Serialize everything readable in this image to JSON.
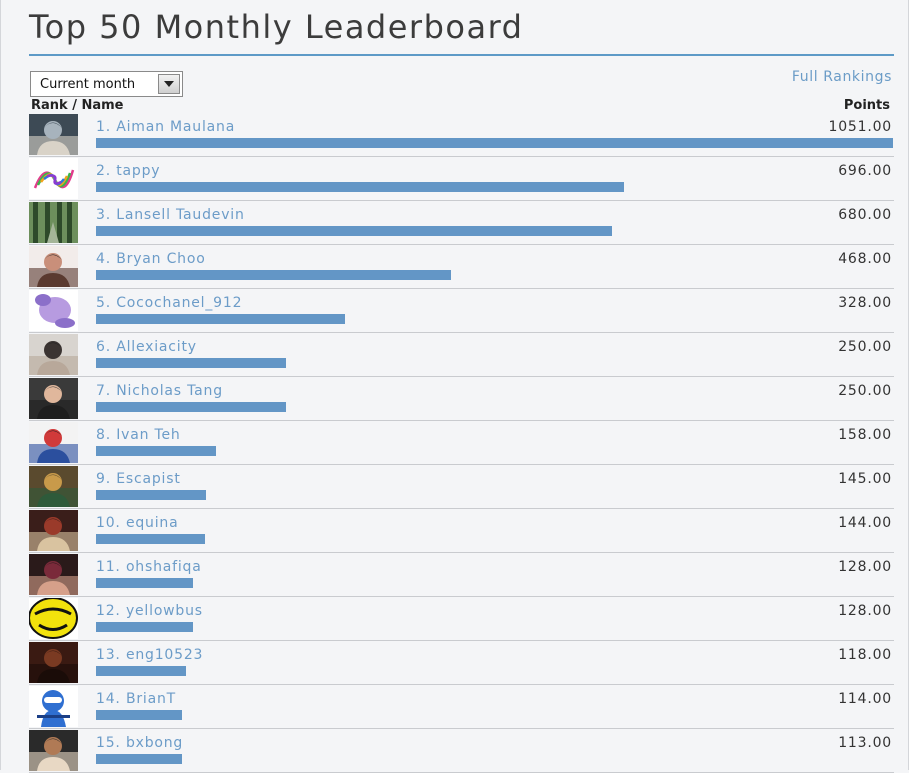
{
  "page": {
    "title": "Top 50 Monthly Leaderboard",
    "period_select": {
      "value": "Current month"
    },
    "full_rankings_link": "Full Rankings",
    "columns": {
      "rank_name": "Rank / Name",
      "points": "Points"
    },
    "bar_color": "#6396c6",
    "link_color": "#6c9cc8",
    "max_points": 1051.0
  },
  "rows": [
    {
      "rank": "1.",
      "name": "Aiman Maulana",
      "points": "1051.00",
      "value": 1051.0,
      "avatar": "photo-icon",
      "avatar_colors": [
        "#3d4a55",
        "#a7b3bd",
        "#d9d3c8"
      ]
    },
    {
      "rank": "2.",
      "name": "tappy",
      "points": "696.00",
      "value": 696.0,
      "avatar": "colorful-doodle-icon",
      "avatar_colors": [
        "#ffffff",
        "#e23c8c",
        "#3bb54a"
      ]
    },
    {
      "rank": "3.",
      "name": "Lansell Taudevin",
      "points": "680.00",
      "value": 680.0,
      "avatar": "forest-photo-icon",
      "avatar_colors": [
        "#2e4a2a",
        "#6d8f5c",
        "#a4b598"
      ]
    },
    {
      "rank": "4.",
      "name": "Bryan Choo",
      "points": "468.00",
      "value": 468.0,
      "avatar": "photo-icon",
      "avatar_colors": [
        "#f2ecea",
        "#c98f7a",
        "#5a3a30"
      ]
    },
    {
      "rank": "5.",
      "name": "Cocochanel_912",
      "points": "328.00",
      "value": 328.0,
      "avatar": "cartoon-icon",
      "avatar_colors": [
        "#ffffff",
        "#b79be0",
        "#8b6fc9"
      ]
    },
    {
      "rank": "6.",
      "name": "Allexiacity",
      "points": "250.00",
      "value": 250.0,
      "avatar": "photo-icon",
      "avatar_colors": [
        "#d8d4cf",
        "#3b3432",
        "#b8a89a"
      ]
    },
    {
      "rank": "7.",
      "name": "Nicholas Tang",
      "points": "250.00",
      "value": 250.0,
      "avatar": "photo-icon",
      "avatar_colors": [
        "#3a3a3a",
        "#e0b79c",
        "#1e1e1e"
      ]
    },
    {
      "rank": "8.",
      "name": "Ivan Teh",
      "points": "158.00",
      "value": 158.0,
      "avatar": "photo-icon",
      "avatar_colors": [
        "#f3f3f3",
        "#d13a3a",
        "#2b4f9e"
      ]
    },
    {
      "rank": "9.",
      "name": "Escapist",
      "points": "145.00",
      "value": 145.0,
      "avatar": "photo-icon",
      "avatar_colors": [
        "#5a4a2e",
        "#c89a4a",
        "#2e5a3a"
      ]
    },
    {
      "rank": "10.",
      "name": "equina",
      "points": "144.00",
      "value": 144.0,
      "avatar": "photo-icon",
      "avatar_colors": [
        "#3a1e1a",
        "#9a3a2a",
        "#d9c3a0"
      ]
    },
    {
      "rank": "11.",
      "name": "ohshafiqa",
      "points": "128.00",
      "value": 128.0,
      "avatar": "photo-icon",
      "avatar_colors": [
        "#2a1a1a",
        "#7a2a3a",
        "#d6a08a"
      ]
    },
    {
      "rank": "12.",
      "name": "yellowbus",
      "points": "128.00",
      "value": 128.0,
      "avatar": "yellow-logo-icon",
      "avatar_colors": [
        "#ffffff",
        "#f2e20c",
        "#111111"
      ]
    },
    {
      "rank": "13.",
      "name": "eng10523",
      "points": "118.00",
      "value": 118.0,
      "avatar": "photo-icon",
      "avatar_colors": [
        "#3a1a12",
        "#7a3a22",
        "#1a0c08"
      ]
    },
    {
      "rank": "14.",
      "name": "BrianT",
      "points": "114.00",
      "value": 114.0,
      "avatar": "ninja-icon",
      "avatar_colors": [
        "#ffffff",
        "#2f6fd1",
        "#1b3f86"
      ]
    },
    {
      "rank": "15.",
      "name": "bxbong",
      "points": "113.00",
      "value": 113.0,
      "avatar": "photo-icon",
      "avatar_colors": [
        "#2a2a2a",
        "#b07a55",
        "#e8d8c4"
      ]
    }
  ]
}
